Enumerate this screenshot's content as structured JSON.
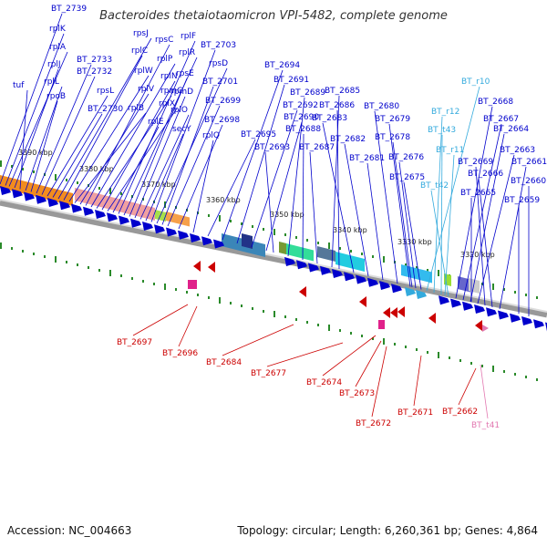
{
  "title": "Bacteroides thetaiotaomicron VPI-5482, complete genome",
  "footer": {
    "accession": "Accession: NC_004663",
    "topology": "Topology: circular; Length: 6,260,361 bp; Genes: 4,864"
  },
  "scale_labels": [
    "3390 kbp",
    "3380 kbp",
    "3370 kbp",
    "3360 kbp",
    "3350 kbp",
    "3340 kbp",
    "3330 kbp",
    "3320 kbp"
  ],
  "genes_above": [
    "BT_2739",
    "rplK",
    "rplA",
    "rplJ",
    "tuf",
    "rplL",
    "rpoB",
    "BT_2733",
    "BT_2732",
    "rpsL",
    "BT_2730",
    "rpsJ",
    "rplC",
    "rplW",
    "rplB",
    "rplV",
    "rpsC",
    "rplP",
    "rpmC",
    "rplN",
    "rplX",
    "rplE",
    "rplF",
    "rplR",
    "rpsE",
    "rpmD",
    "rplO",
    "secY",
    "BT_2703",
    "rpsD",
    "BT_2701",
    "BT_2699",
    "BT_2698",
    "rplQ",
    "BT_2695",
    "BT_2694",
    "BT_2691",
    "BT_2692",
    "BT_2690",
    "BT_2693",
    "BT_2689",
    "BT_2688",
    "BT_2687",
    "BT_2685",
    "BT_2686",
    "BT_2683",
    "BT_2682",
    "BT_2681",
    "BT_2680",
    "BT_2679",
    "BT_2678",
    "BT_2676",
    "BT_2675",
    "BT_r10",
    "BT_r12",
    "BT_t43",
    "BT_r11",
    "BT_t42",
    "BT_2668",
    "BT_2667",
    "BT_2664",
    "BT_2663",
    "BT_2669",
    "BT_2666",
    "BT_2661",
    "BT_2660",
    "BT_2665",
    "BT_2659"
  ],
  "genes_below": [
    "BT_2697",
    "BT_2696",
    "BT_2684",
    "BT_2677",
    "BT_2674",
    "BT_2673",
    "BT_2672",
    "BT_2671",
    "BT_2662",
    "BT_t41"
  ],
  "colors": {
    "protein": "#0000cc",
    "rna": "#33aadd",
    "negative": "#cc0000",
    "trna_neg": "#e277b0",
    "title": "#333333"
  }
}
